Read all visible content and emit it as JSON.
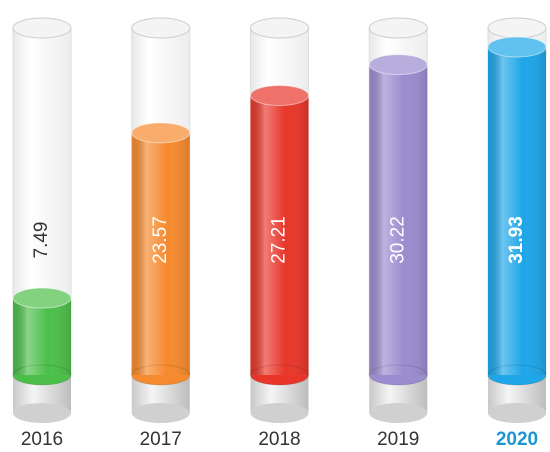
{
  "chart_data": {
    "type": "tube",
    "categories": [
      "2016",
      "2017",
      "2018",
      "2019",
      "2020"
    ],
    "values": [
      7.49,
      23.57,
      27.21,
      30.22,
      31.93
    ],
    "colors": [
      "#4cbf4a",
      "#f58a2e",
      "#e8362a",
      "#9a8ccf",
      "#1ea6e8"
    ]
  }
}
